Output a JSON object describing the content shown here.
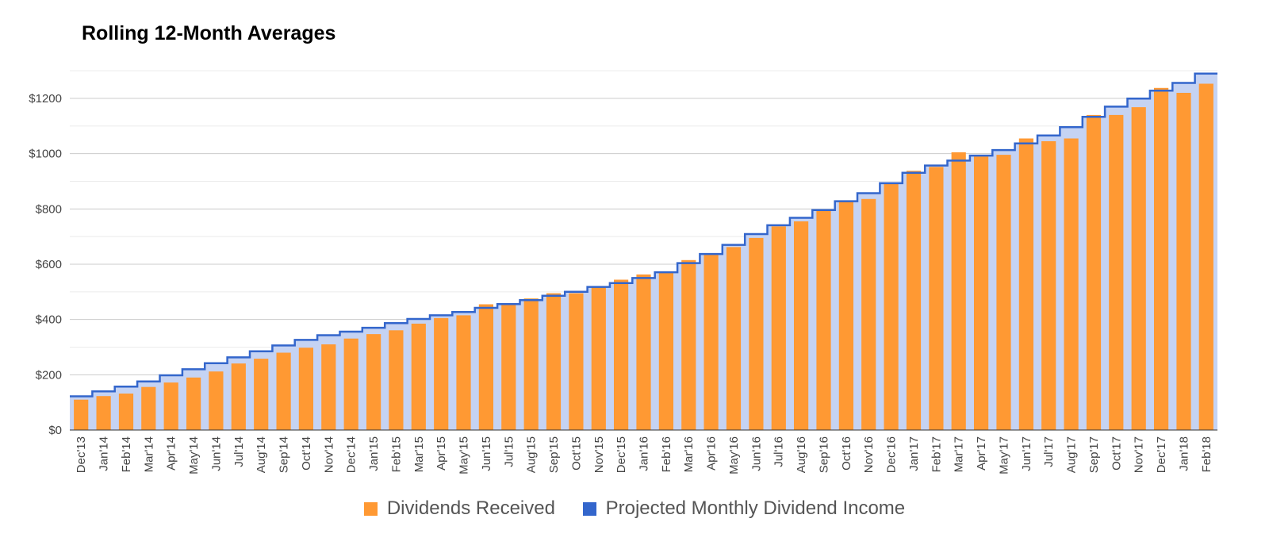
{
  "chart_data": {
    "type": "bar",
    "title": "Rolling 12-Month Averages",
    "xlabel": "",
    "ylabel": "",
    "ylim": [
      0,
      1300
    ],
    "yticks": [
      0,
      200,
      400,
      600,
      800,
      1000,
      1200
    ],
    "ytick_labels": [
      "$0",
      "$200",
      "$400",
      "$600",
      "$800",
      "$1000",
      "$1200"
    ],
    "grid": true,
    "legend_position": "bottom",
    "categories": [
      "Dec'13",
      "Jan'14",
      "Feb'14",
      "Mar'14",
      "Apr'14",
      "May'14",
      "Jun'14",
      "Jul'14",
      "Aug'14",
      "Sep'14",
      "Oct'14",
      "Nov'14",
      "Dec'14",
      "Jan'15",
      "Feb'15",
      "Mar'15",
      "Apr'15",
      "May'15",
      "Jun'15",
      "Jul'15",
      "Aug'15",
      "Sep'15",
      "Oct'15",
      "Nov'15",
      "Dec'15",
      "Jan'16",
      "Feb'16",
      "Mar'16",
      "Apr'16",
      "May'16",
      "Jun'16",
      "Jul'16",
      "Aug'16",
      "Sep'16",
      "Oct'16",
      "Nov'16",
      "Dec'16",
      "Jan'17",
      "Feb'17",
      "Mar'17",
      "Apr'17",
      "May'17",
      "Jun'17",
      "Jul'17",
      "Aug'17",
      "Sep'17",
      "Oct'17",
      "Nov'17",
      "Dec'17",
      "Jan'18",
      "Feb'18"
    ],
    "series": [
      {
        "name": "Dividends Received",
        "kind": "bar",
        "color": "#FF9933",
        "values": [
          110,
          123,
          132,
          156,
          172,
          190,
          212,
          241,
          258,
          280,
          298,
          310,
          331,
          347,
          361,
          385,
          405,
          415,
          455,
          456,
          476,
          495,
          495,
          519,
          544,
          563,
          570,
          615,
          637,
          662,
          695,
          737,
          755,
          796,
          826,
          836,
          891,
          938,
          952,
          1005,
          990,
          996,
          1055,
          1045,
          1055,
          1140,
          1140,
          1168,
          1238,
          1220,
          1253
        ]
      },
      {
        "name": "Projected Monthly Dividend Income",
        "kind": "stepped-area",
        "color": "#3366CC",
        "fill": "#C5D3F3",
        "values": [
          122,
          140,
          157,
          176,
          198,
          220,
          242,
          263,
          285,
          306,
          326,
          343,
          356,
          370,
          387,
          402,
          415,
          427,
          442,
          456,
          470,
          486,
          500,
          518,
          532,
          550,
          571,
          604,
          637,
          670,
          709,
          741,
          768,
          796,
          828,
          857,
          893,
          931,
          957,
          975,
          993,
          1013,
          1037,
          1066,
          1096,
          1133,
          1170,
          1199,
          1228,
          1256,
          1290
        ]
      }
    ]
  }
}
